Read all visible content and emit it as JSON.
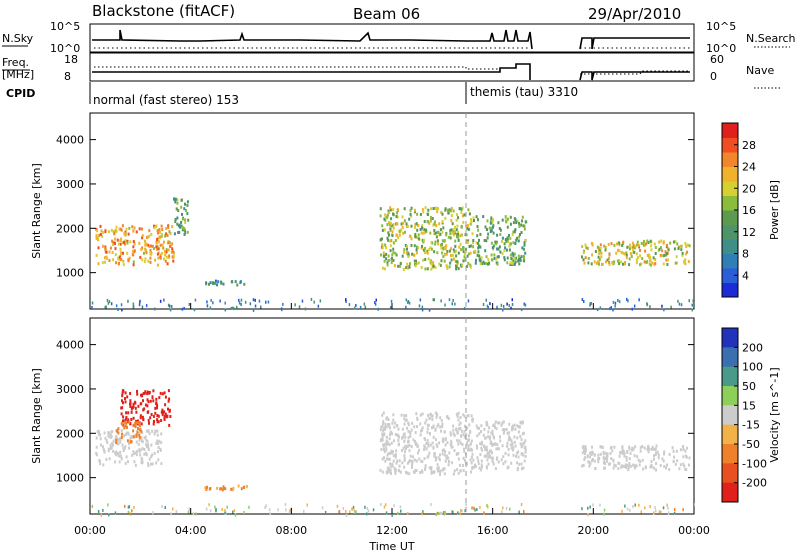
{
  "header": {
    "radar": "Blackstone (fitACF)",
    "beam": "Beam 06",
    "date": "29/Apr/2010"
  },
  "params": {
    "nsky_label": "N.Sky",
    "nsky_ticks": [
      "10^5",
      "10^0"
    ],
    "nsearch_label": "N.Search",
    "nsearch_ticks": [
      "10^5",
      "10^0"
    ],
    "freq_label": "Freq.",
    "freq_unit": "[MHz]",
    "freq_ticks": [
      "18",
      "8"
    ],
    "nave_label": "Nave",
    "nave_ticks": [
      "60",
      "0"
    ],
    "cpid_label": "CPID",
    "cpid_segments": [
      {
        "label": "normal (fast stereo) 153",
        "start_hour": 0
      },
      {
        "label": "themis (tau) 3310",
        "start_hour": 15.0
      }
    ]
  },
  "chart_data": [
    {
      "type": "heatmap",
      "name": "power",
      "ylabel": "Slant Range [km]",
      "ylim": [
        180,
        4600
      ],
      "yticks": [
        "1000",
        "2000",
        "3000",
        "4000"
      ],
      "xlabel": "Time UT",
      "xlim": [
        0,
        24
      ],
      "xticks": [
        "00:00",
        "04:00",
        "08:00",
        "12:00",
        "16:00",
        "20:00",
        "00:00"
      ],
      "colorbar": {
        "label": "Power [dB]",
        "range": [
          0,
          32
        ],
        "ticks": [
          "4",
          "8",
          "12",
          "16",
          "20",
          "24",
          "28"
        ],
        "colors": [
          "#1b2bd6",
          "#2a5ed8",
          "#2f7fb6",
          "#3f8f88",
          "#4e9468",
          "#5c9a4f",
          "#8cbc3c",
          "#d8cf33",
          "#efb22a",
          "#f2862a",
          "#ef4e22",
          "#e0201a"
        ]
      },
      "echo_regions": [
        {
          "hours": [
            0.2,
            3.3
          ],
          "range_km": [
            1200,
            2100
          ],
          "level": 24
        },
        {
          "hours": [
            3.3,
            3.9
          ],
          "range_km": [
            1800,
            2700
          ],
          "level": 14
        },
        {
          "hours": [
            4.5,
            6.2
          ],
          "range_km": [
            750,
            850
          ],
          "level": 10
        },
        {
          "hours": [
            11.5,
            15.2
          ],
          "range_km": [
            1100,
            2500
          ],
          "level": 18
        },
        {
          "hours": [
            15.2,
            17.3
          ],
          "range_km": [
            1200,
            2300
          ],
          "level": 14
        },
        {
          "hours": [
            19.5,
            23.8
          ],
          "range_km": [
            1200,
            1750
          ],
          "level": 20
        }
      ],
      "data_gap_hours": [
        17.6,
        19.5
      ]
    },
    {
      "type": "heatmap",
      "name": "velocity",
      "ylabel": "Slant Range [km]",
      "ylim": [
        180,
        4600
      ],
      "yticks": [
        "1000",
        "2000",
        "3000",
        "4000"
      ],
      "xlabel": "Time UT",
      "xlim": [
        0,
        24
      ],
      "xticks": [
        "00:00",
        "04:00",
        "08:00",
        "12:00",
        "16:00",
        "20:00",
        "00:00"
      ],
      "colorbar": {
        "label": "Velocity [m s^-1]",
        "ticks": [
          "200",
          "100",
          "50",
          "15",
          "-15",
          "-50",
          "-100",
          "-200"
        ],
        "colors": [
          "#2233bb",
          "#3a6fb0",
          "#4a9a8a",
          "#8cd05a",
          "#cccccc",
          "#f2b24a",
          "#f0802a",
          "#e85020",
          "#e0201a"
        ]
      },
      "echo_regions": [
        {
          "hours": [
            0.2,
            2.8
          ],
          "range_km": [
            1300,
            2100
          ],
          "velocity": 0
        },
        {
          "hours": [
            1.2,
            3.2
          ],
          "range_km": [
            2200,
            3000
          ],
          "velocity": -180
        },
        {
          "hours": [
            1.0,
            2.0
          ],
          "range_km": [
            1800,
            2300
          ],
          "velocity": -70
        },
        {
          "hours": [
            4.5,
            6.2
          ],
          "range_km": [
            750,
            850
          ],
          "velocity": -60
        },
        {
          "hours": [
            11.5,
            15.2
          ],
          "range_km": [
            1100,
            2500
          ],
          "velocity": 0
        },
        {
          "hours": [
            15.2,
            17.3
          ],
          "range_km": [
            1200,
            2300
          ],
          "velocity": 0
        },
        {
          "hours": [
            19.5,
            23.8
          ],
          "range_km": [
            1200,
            1750
          ],
          "velocity": 0
        }
      ],
      "data_gap_hours": [
        17.6,
        19.5
      ]
    }
  ]
}
